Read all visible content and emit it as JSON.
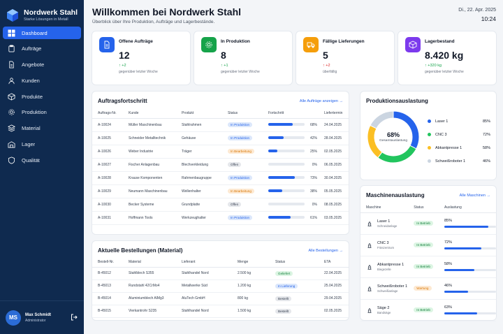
{
  "brand": {
    "name": "Nordwerk Stahl",
    "tagline": "Starke Lösungen in Metall"
  },
  "nav": [
    {
      "label": "Dashboard",
      "icon": "grid-icon",
      "active": true
    },
    {
      "label": "Aufträge",
      "icon": "clipboard-icon"
    },
    {
      "label": "Angebote",
      "icon": "document-icon"
    },
    {
      "label": "Kunden",
      "icon": "users-icon"
    },
    {
      "label": "Produkte",
      "icon": "box-icon"
    },
    {
      "label": "Produktion",
      "icon": "gear-icon"
    },
    {
      "label": "Material",
      "icon": "layers-icon"
    },
    {
      "label": "Lager",
      "icon": "warehouse-icon"
    },
    {
      "label": "Qualität",
      "icon": "shield-icon"
    }
  ],
  "user": {
    "initials": "MS",
    "name": "Max Schmidt",
    "role": "Administrator"
  },
  "header": {
    "title": "Willkommen bei Nordwerk Stahl",
    "subtitle": "Überblick über Ihre Produktion, Aufträge und Lagerbestände.",
    "date": "Di., 22. Apr. 2025",
    "time": "10:24"
  },
  "stats": [
    {
      "label": "Offene Aufträge",
      "value": "12",
      "delta": "+2",
      "delta_dir": "up",
      "note": "gegenüber letzter Woche",
      "color": "#2563eb",
      "icon": "document-icon"
    },
    {
      "label": "In Produktion",
      "value": "8",
      "delta": "+1",
      "delta_dir": "up",
      "note": "gegenüber letzter Woche",
      "color": "#16a34a",
      "icon": "gear-icon"
    },
    {
      "label": "Fällige Lieferungen",
      "value": "5",
      "delta": "+2",
      "delta_dir": "up-bad",
      "note": "überfällig",
      "color": "#f59e0b",
      "icon": "truck-icon"
    },
    {
      "label": "Lagerbestand",
      "value": "8.420 kg",
      "delta": "+320 kg",
      "delta_dir": "up",
      "note": "gegenüber letzter Woche",
      "color": "#7c3aed",
      "icon": "cube-icon"
    }
  ],
  "orders": {
    "title": "Auftragsfortschritt",
    "link": "Alle Aufträge anzeigen →",
    "columns": [
      "Auftrags-Nr.",
      "Kunde",
      "Produkt",
      "Status",
      "Fortschritt",
      "Liefertermin"
    ],
    "rows": [
      {
        "id": "A-10024",
        "customer": "Müller Maschinenbau",
        "product": "Stahlrahmen",
        "status": "In Produktion",
        "progress": 68,
        "pct": "68%",
        "date": "24.04.2025"
      },
      {
        "id": "A-10025",
        "customer": "Schneider Metalltechnik",
        "product": "Gehäuse",
        "status": "In Produktion",
        "progress": 42,
        "pct": "42%",
        "date": "28.04.2025"
      },
      {
        "id": "A-10026",
        "customer": "Weber Industrie",
        "product": "Träger",
        "status": "In Bearbeitung",
        "progress": 25,
        "pct": "25%",
        "date": "02.05.2025"
      },
      {
        "id": "A-10027",
        "customer": "Fischer Anlagenbau",
        "product": "Blechverkleidung",
        "status": "Offen",
        "progress": 0,
        "pct": "0%",
        "date": "06.05.2025"
      },
      {
        "id": "A-10028",
        "customer": "Krause Komponenten",
        "product": "Rahmenbaugruppe",
        "status": "In Produktion",
        "progress": 73,
        "pct": "73%",
        "date": "30.04.2025"
      },
      {
        "id": "A-10029",
        "customer": "Neumann Maschinenbau",
        "product": "Wellenhalter",
        "status": "In Bearbeitung",
        "progress": 38,
        "pct": "38%",
        "date": "05.05.2025"
      },
      {
        "id": "A-10030",
        "customer": "Becker Systeme",
        "product": "Grundplatte",
        "status": "Offen",
        "progress": 0,
        "pct": "0%",
        "date": "08.05.2025"
      },
      {
        "id": "A-10031",
        "customer": "Hoffmann Tools",
        "product": "Werkzeughalter",
        "status": "In Produktion",
        "progress": 61,
        "pct": "61%",
        "date": "03.05.2025"
      }
    ]
  },
  "purchases": {
    "title": "Aktuelle Bestellungen (Material)",
    "link": "Alle Bestellungen →",
    "columns": [
      "Bestell-Nr.",
      "Material",
      "Lieferant",
      "Menge",
      "Status",
      "ETA"
    ],
    "rows": [
      {
        "id": "B-45012",
        "material": "Stahlblech S355",
        "supplier": "Stahlhandel Nord",
        "qty": "2.500 kg",
        "status": "Geliefert",
        "eta": "22.04.2025"
      },
      {
        "id": "B-45013",
        "material": "Rundstahl 42CrMo4",
        "supplier": "Metallwerke Süd",
        "qty": "1.200 kg",
        "status": "In Lieferung",
        "eta": "25.04.2025"
      },
      {
        "id": "B-45014",
        "material": "Aluminiumblech AlMg3",
        "supplier": "AluTech GmbH",
        "qty": "800 kg",
        "status": "Bestellt",
        "eta": "29.04.2025"
      },
      {
        "id": "B-45015",
        "material": "Vierkantrohr S235",
        "supplier": "Stahlhandel Nord",
        "qty": "1.500 kg",
        "status": "Bestellt",
        "eta": "02.05.2025"
      }
    ]
  },
  "utilization": {
    "title": "Produktionsauslastung",
    "center_value": "68%",
    "center_label": "Gesamtauslastung",
    "items": [
      {
        "name": "Laser 1",
        "value": 85,
        "label": "85%",
        "color": "#2563eb"
      },
      {
        "name": "CNC 3",
        "value": 72,
        "label": "72%",
        "color": "#22c55e"
      },
      {
        "name": "Abkantpresse 1",
        "value": 58,
        "label": "58%",
        "color": "#fbbf24"
      },
      {
        "name": "Schweißroboter 1",
        "value": 46,
        "label": "46%",
        "color": "#cbd5e1"
      }
    ]
  },
  "machines": {
    "title": "Maschinenauslastung",
    "link": "Alle Maschinen →",
    "columns": [
      "Maschine",
      "Status",
      "Auslastung"
    ],
    "rows": [
      {
        "name": "Laser 1",
        "sub": "Schneidanlage",
        "status": "In Betrieb",
        "value": 85,
        "label": "85%",
        "icon": "laser-icon"
      },
      {
        "name": "CNC 3",
        "sub": "Fräszentrum",
        "status": "In Betrieb",
        "value": 72,
        "label": "72%",
        "icon": "cnc-icon"
      },
      {
        "name": "Abkantpresse 1",
        "sub": "Biegezelle",
        "status": "In Betrieb",
        "value": 58,
        "label": "58%",
        "icon": "press-icon"
      },
      {
        "name": "Schweißroboter 1",
        "sub": "Schweißanlage",
        "status": "Wartung",
        "value": 46,
        "label": "46%",
        "icon": "robot-icon"
      },
      {
        "name": "Säge 2",
        "sub": "Bandsäge",
        "status": "In Betrieb",
        "value": 63,
        "label": "63%",
        "icon": "saw-icon"
      }
    ]
  },
  "status_colors": {
    "In Produktion": {
      "bg": "#dbe7fb",
      "fg": "#2563eb"
    },
    "In Bearbeitung": {
      "bg": "#fde9d2",
      "fg": "#d97706"
    },
    "Offen": {
      "bg": "#e5e7eb",
      "fg": "#374151"
    },
    "Geliefert": {
      "bg": "#dcf5e3",
      "fg": "#15803d"
    },
    "In Lieferung": {
      "bg": "#dbe7fb",
      "fg": "#2563eb"
    },
    "Bestellt": {
      "bg": "#e5e7eb",
      "fg": "#374151"
    },
    "In Betrieb": {
      "bg": "#dcf5e3",
      "fg": "#15803d"
    },
    "Wartung": {
      "bg": "#fde9d2",
      "fg": "#d97706"
    }
  }
}
